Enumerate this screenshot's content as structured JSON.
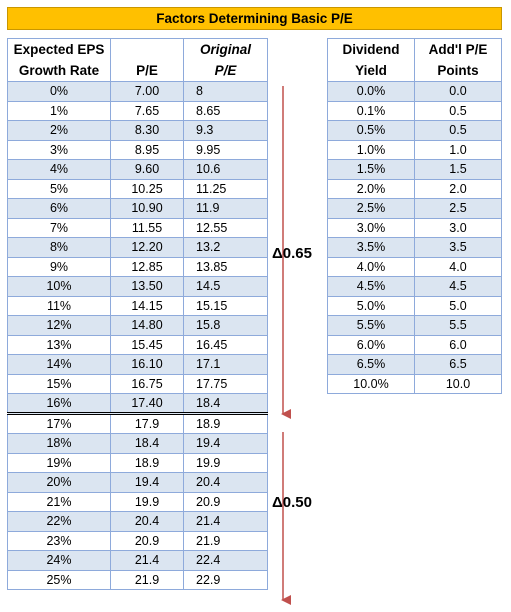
{
  "title": "Factors Determining Basic P/E",
  "main_table": {
    "headers": [
      {
        "line1": "Expected EPS",
        "line2": "Growth Rate"
      },
      {
        "line1": "",
        "line2": "P/E"
      },
      {
        "line1": "Original",
        "line2": "P/E"
      }
    ],
    "rows": [
      [
        "0%",
        "7.00",
        "8"
      ],
      [
        "1%",
        "7.65",
        "8.65"
      ],
      [
        "2%",
        "8.30",
        "9.3"
      ],
      [
        "3%",
        "8.95",
        "9.95"
      ],
      [
        "4%",
        "9.60",
        "10.6"
      ],
      [
        "5%",
        "10.25",
        "11.25"
      ],
      [
        "6%",
        "10.90",
        "11.9"
      ],
      [
        "7%",
        "11.55",
        "12.55"
      ],
      [
        "8%",
        "12.20",
        "13.2"
      ],
      [
        "9%",
        "12.85",
        "13.85"
      ],
      [
        "10%",
        "13.50",
        "14.5"
      ],
      [
        "11%",
        "14.15",
        "15.15"
      ],
      [
        "12%",
        "14.80",
        "15.8"
      ],
      [
        "13%",
        "15.45",
        "16.45"
      ],
      [
        "14%",
        "16.10",
        "17.1"
      ],
      [
        "15%",
        "16.75",
        "17.75"
      ],
      [
        "16%",
        "17.40",
        "18.4"
      ],
      [
        "17%",
        "17.9",
        "18.9"
      ],
      [
        "18%",
        "18.4",
        "19.4"
      ],
      [
        "19%",
        "18.9",
        "19.9"
      ],
      [
        "20%",
        "19.4",
        "20.4"
      ],
      [
        "21%",
        "19.9",
        "20.9"
      ],
      [
        "22%",
        "20.4",
        "21.4"
      ],
      [
        "23%",
        "20.9",
        "21.9"
      ],
      [
        "24%",
        "21.4",
        "22.4"
      ],
      [
        "25%",
        "21.9",
        "22.9"
      ]
    ]
  },
  "dividend_table": {
    "headers": [
      {
        "line1": "Dividend",
        "line2": "Yield"
      },
      {
        "line1": "Add'l P/E",
        "line2": "Points"
      }
    ],
    "rows": [
      [
        "0.0%",
        "0.0"
      ],
      [
        "0.1%",
        "0.5"
      ],
      [
        "0.5%",
        "0.5"
      ],
      [
        "1.0%",
        "1.0"
      ],
      [
        "1.5%",
        "1.5"
      ],
      [
        "2.0%",
        "2.0"
      ],
      [
        "2.5%",
        "2.5"
      ],
      [
        "3.0%",
        "3.0"
      ],
      [
        "3.5%",
        "3.5"
      ],
      [
        "4.0%",
        "4.0"
      ],
      [
        "4.5%",
        "4.5"
      ],
      [
        "5.0%",
        "5.0"
      ],
      [
        "5.5%",
        "5.5"
      ],
      [
        "6.0%",
        "6.0"
      ],
      [
        "6.5%",
        "6.5"
      ],
      [
        "10.0%",
        "10.0"
      ]
    ]
  },
  "annotations": {
    "delta_upper": "Δ0.65",
    "delta_lower": "Δ0.50"
  },
  "colors": {
    "title_bg": "#ffc000",
    "row_alt": "#dbe5f1",
    "border": "#8eaadb",
    "arrow": "#c0504d"
  }
}
